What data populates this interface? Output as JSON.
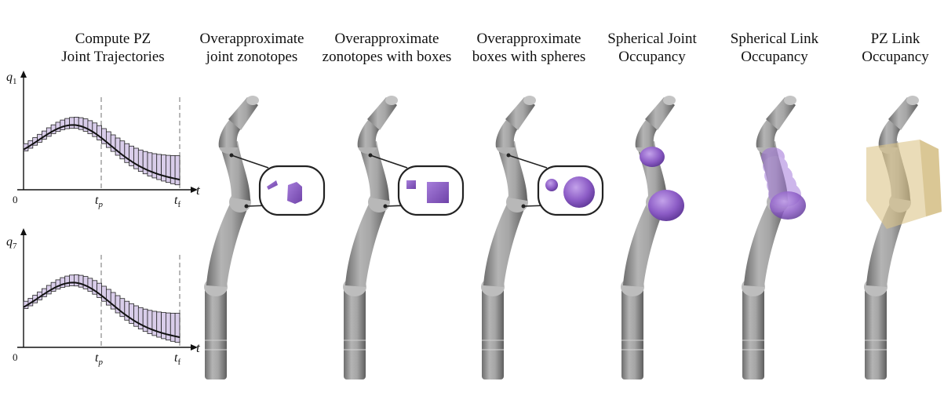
{
  "headings": [
    {
      "line1": "Compute PZ",
      "line2": "Joint Trajectories"
    },
    {
      "line1": "Overapproximate",
      "line2": "joint zonotopes"
    },
    {
      "line1": "Overapproximate",
      "line2": "zonotopes with boxes"
    },
    {
      "line1": "Overapproximate",
      "line2": "boxes with spheres"
    },
    {
      "line1": "Spherical Joint",
      "line2": "Occupancy"
    },
    {
      "line1": "Spherical Link",
      "line2": "Occupancy"
    },
    {
      "line1": "PZ Link",
      "line2": "Occupancy"
    }
  ],
  "plots": [
    {
      "ylabel": "q",
      "ysub": "1",
      "xlabel": "t",
      "origin": "0",
      "tp": "t",
      "tp_sub": "p",
      "tf": "t",
      "tf_sub": "f"
    },
    {
      "ylabel": "q",
      "ysub": "7",
      "xlabel": "t",
      "origin": "0",
      "tp": "t",
      "tp_sub": "p",
      "tf": "t",
      "tf_sub": "f"
    }
  ],
  "colors": {
    "occupancy": "#8f5fc7",
    "interval_fill": "#d9cdea",
    "pz_link": "#dcc488",
    "robot": "#9a9a9a"
  }
}
